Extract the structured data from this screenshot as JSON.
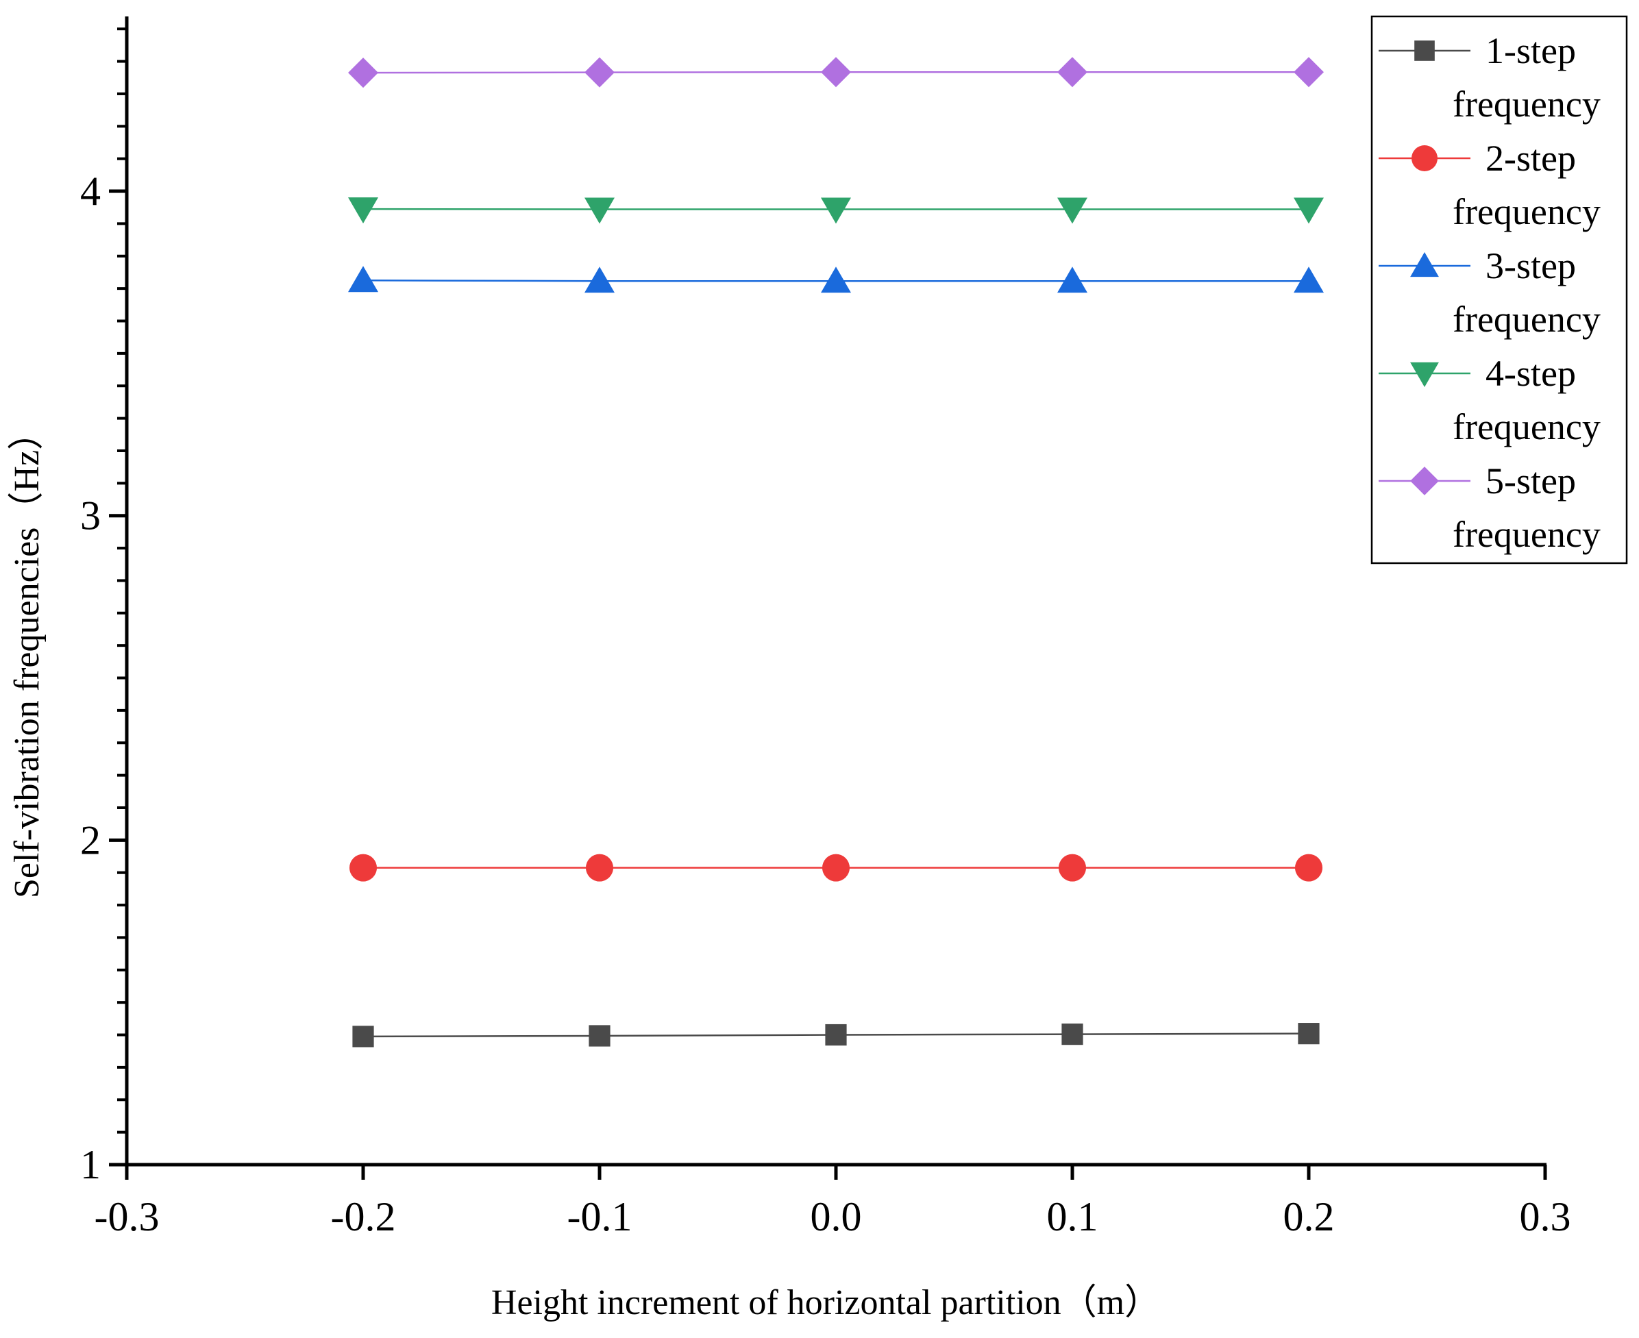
{
  "chart_data": {
    "type": "line",
    "title": "",
    "xlabel": "Height increment of horizontal partition（m）",
    "ylabel": "Self-vibration frequencies（Hz）",
    "xlim": [
      -0.3,
      0.3
    ],
    "ylim": [
      1,
      4.53
    ],
    "x_ticks": [
      -0.3,
      -0.2,
      -0.1,
      0.0,
      0.1,
      0.2,
      0.3
    ],
    "x_tick_labels": [
      "-0.3",
      "-0.2",
      "-0.1",
      "0.0",
      "0.1",
      "0.2",
      "0.3"
    ],
    "y_ticks": [
      1,
      2,
      3,
      4
    ],
    "y_tick_labels": [
      "1",
      "2",
      "3",
      "4"
    ],
    "y_minor_step": 0.1,
    "grid": false,
    "legend_position": "top-right",
    "x": [
      -0.2,
      -0.1,
      0.0,
      0.1,
      0.2
    ],
    "series": [
      {
        "name_line1": "1-step",
        "name_line2": "frequency",
        "values": [
          1.395,
          1.397,
          1.4,
          1.402,
          1.404
        ],
        "color": "#4a4a4a",
        "marker": "square"
      },
      {
        "name_line1": "2-step",
        "name_line2": "frequency",
        "values": [
          1.915,
          1.915,
          1.915,
          1.915,
          1.915
        ],
        "color": "#ee3a3a",
        "marker": "circle"
      },
      {
        "name_line1": "3-step",
        "name_line2": "frequency",
        "values": [
          3.725,
          3.723,
          3.723,
          3.723,
          3.723
        ],
        "color": "#1a6adc",
        "marker": "triangle-up"
      },
      {
        "name_line1": "4-step",
        "name_line2": "frequency",
        "values": [
          3.945,
          3.944,
          3.944,
          3.944,
          3.944
        ],
        "color": "#2ea36a",
        "marker": "triangle-down"
      },
      {
        "name_line1": "5-step",
        "name_line2": "frequency",
        "values": [
          4.365,
          4.366,
          4.367,
          4.367,
          4.367
        ],
        "color": "#b070e0",
        "marker": "diamond"
      }
    ]
  }
}
